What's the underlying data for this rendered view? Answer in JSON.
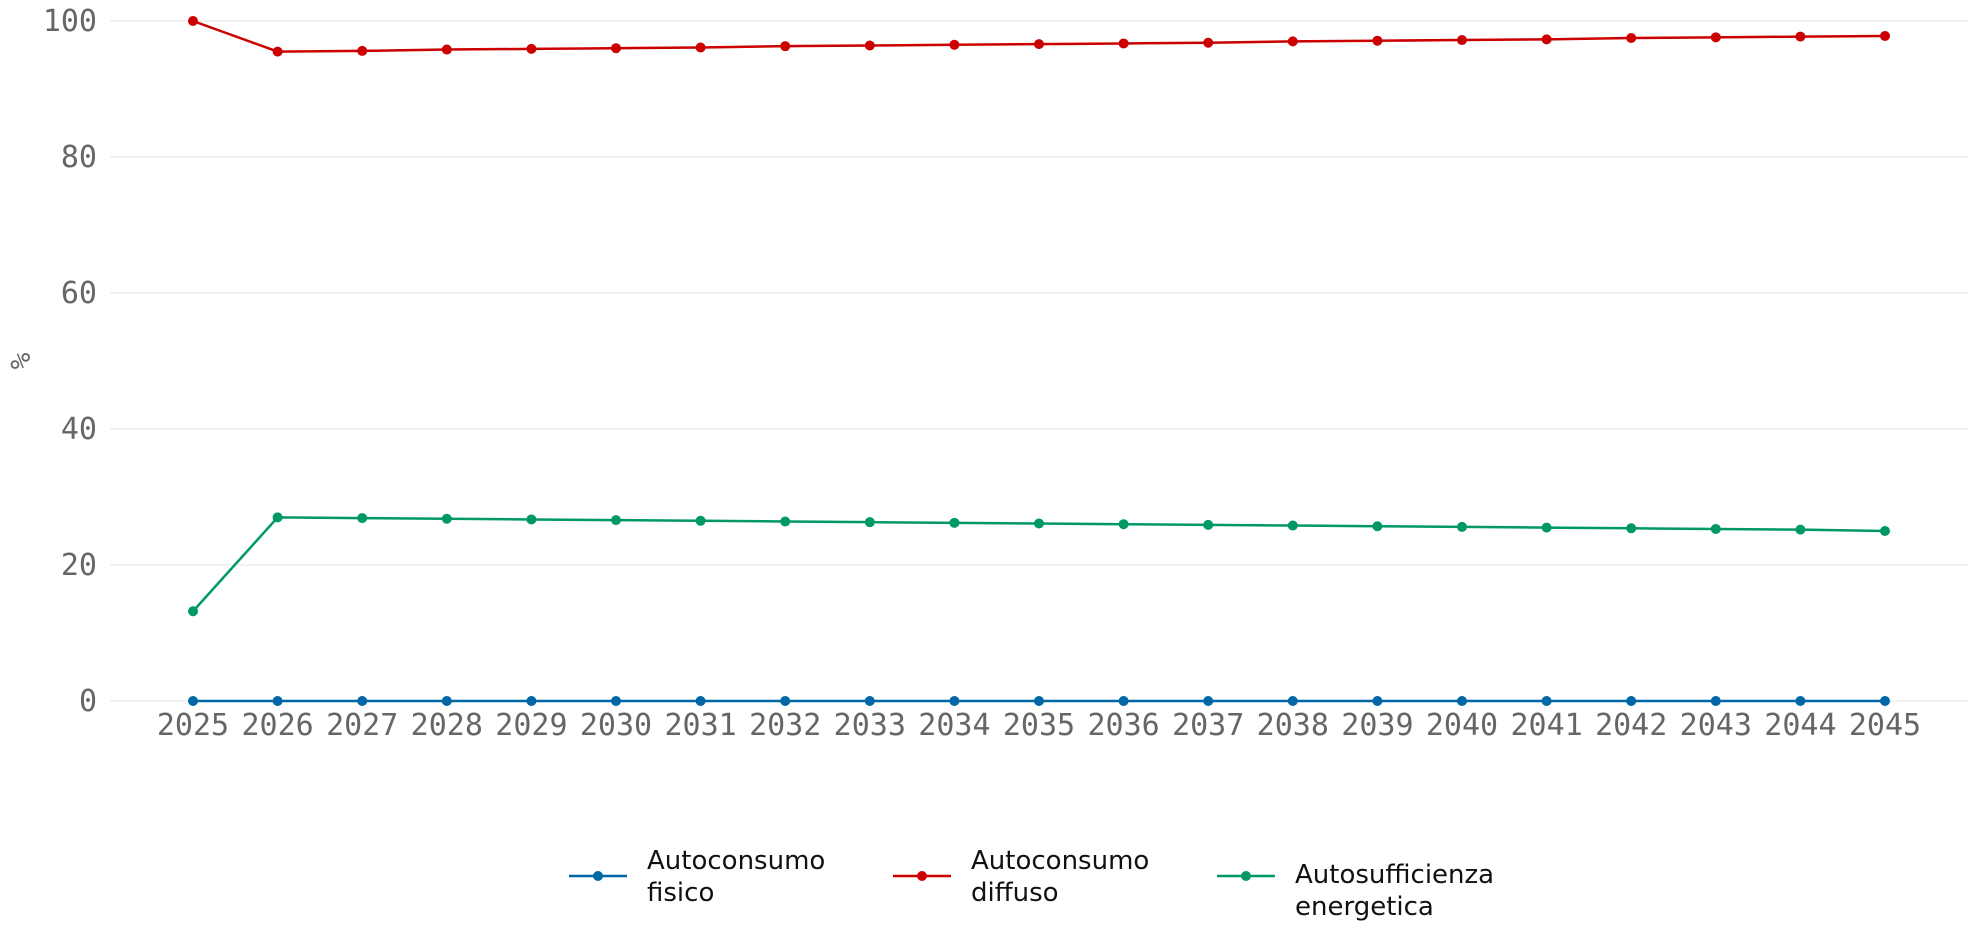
{
  "chart_data": {
    "type": "line",
    "title": "",
    "xlabel": "",
    "ylabel": "%",
    "ylim": [
      0,
      100
    ],
    "yticks": [
      0,
      20,
      40,
      60,
      80,
      100
    ],
    "grid": "horizontal",
    "legend_position": "bottom-center",
    "x": [
      "2025",
      "2026",
      "2027",
      "2028",
      "2029",
      "2030",
      "2031",
      "2032",
      "2033",
      "2034",
      "2035",
      "2036",
      "2037",
      "2038",
      "2039",
      "2040",
      "2041",
      "2042",
      "2043",
      "2044",
      "2045"
    ],
    "series": [
      {
        "name": "Autoconsumo fisico",
        "legend_lines": [
          "Autoconsumo",
          "fisico"
        ],
        "color": "#0066a6",
        "values": [
          0,
          0,
          0,
          0,
          0,
          0,
          0,
          0,
          0,
          0,
          0,
          0,
          0,
          0,
          0,
          0,
          0,
          0,
          0,
          0,
          0
        ]
      },
      {
        "name": "Autoconsumo diffuso",
        "legend_lines": [
          "Autoconsumo",
          "diffuso"
        ],
        "color": "#cc0000",
        "values": [
          100,
          95.5,
          95.6,
          95.8,
          95.9,
          96.0,
          96.1,
          96.3,
          96.4,
          96.5,
          96.6,
          96.7,
          96.8,
          97.0,
          97.1,
          97.2,
          97.3,
          97.5,
          97.6,
          97.7,
          97.8
        ]
      },
      {
        "name": "Autosufficienza energetica",
        "legend_lines": [
          "Autosufficienza",
          "energetica"
        ],
        "color": "#009966",
        "values": [
          13.2,
          27.0,
          26.9,
          26.8,
          26.7,
          26.6,
          26.5,
          26.4,
          26.3,
          26.2,
          26.1,
          26.0,
          25.9,
          25.8,
          25.7,
          25.6,
          25.5,
          25.4,
          25.3,
          25.2,
          25.0
        ]
      }
    ]
  }
}
